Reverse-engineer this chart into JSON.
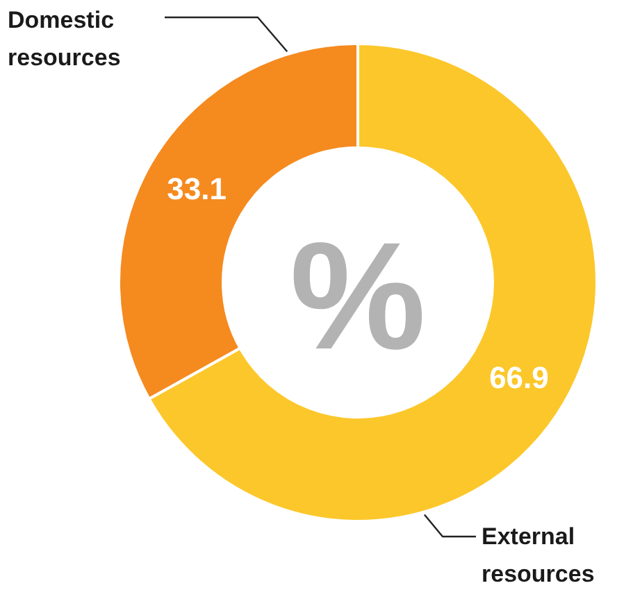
{
  "chart_data": {
    "type": "donut",
    "categories": [
      "External resources",
      "Domestic resources"
    ],
    "values": [
      66.9,
      33.1
    ],
    "colors": [
      "#fcc72a",
      "#f58a1f"
    ],
    "data_labels": true,
    "annotations": [
      "%"
    ]
  }
}
